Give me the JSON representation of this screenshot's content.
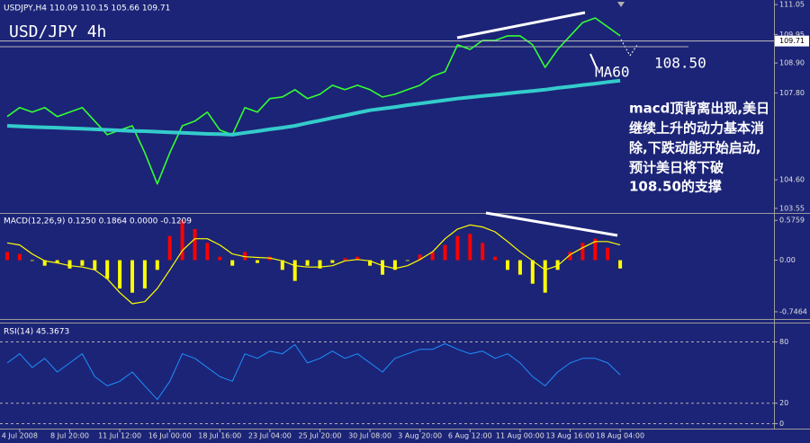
{
  "chart_data": [
    {
      "type": "line",
      "title": "USDJPY,H4 110.09 110.15 105.66 109.71",
      "subtitle": "USD/JPY 4h",
      "annotations": [
        "108.50",
        "macd顶背离出现,美日",
        "继续上升的动力基本消",
        "除,下跌动能开始启动,",
        "预计美日将下破",
        "108.50的支撑"
      ],
      "ylim": [
        103.38,
        111.22
      ],
      "yticks": [
        111.05,
        109.95,
        {
          "value": 108.9,
          "label": "108.90"
        },
        {
          "value": 107.8,
          "label": "107.80"
        },
        {
          "value": 104.6,
          "label": "104.60"
        },
        103.55
      ],
      "last_value": 109.71,
      "grid": false,
      "series": [
        {
          "color": "#33ff33",
          "values": [
            106.93,
            107.26,
            107.09,
            107.26,
            106.93,
            107.09,
            107.26,
            106.76,
            106.26,
            106.43,
            106.59,
            105.6,
            104.45,
            105.6,
            106.59,
            106.76,
            107.09,
            106.43,
            106.26,
            107.26,
            107.09,
            107.59,
            107.65,
            107.92,
            107.59,
            107.75,
            108.08,
            107.92,
            108.08,
            107.92,
            107.65,
            107.75,
            107.92,
            108.08,
            108.41,
            108.58,
            109.57,
            109.4,
            109.73,
            109.73,
            109.9,
            109.9,
            109.57,
            108.74,
            109.4,
            109.9,
            110.39,
            110.56,
            110.23,
            109.9
          ]
        },
        {
          "name": "MA60",
          "color": "#33cccc",
          "values": [
            106.59,
            106.57,
            106.55,
            106.53,
            106.52,
            106.5,
            106.48,
            106.46,
            106.44,
            106.42,
            106.4,
            106.39,
            106.37,
            106.35,
            106.33,
            106.31,
            106.29,
            106.28,
            106.26,
            106.33,
            106.39,
            106.46,
            106.52,
            106.59,
            106.69,
            106.78,
            106.88,
            106.97,
            107.07,
            107.16,
            107.22,
            107.28,
            107.35,
            107.41,
            107.47,
            107.53,
            107.59,
            107.64,
            107.69,
            107.73,
            107.78,
            107.83,
            107.87,
            107.92,
            107.98,
            108.03,
            108.09,
            108.14,
            108.2,
            108.25
          ]
        }
      ]
    },
    {
      "type": "macd",
      "title": "MACD(12,26,9) 0.1250 0.1864 0.0000 -0.1209",
      "ylim": [
        -0.825,
        0.67
      ],
      "yticks": [
        0.5759,
        {
          "value": 0,
          "label": "0.00"
        },
        -0.7464
      ],
      "grid": false,
      "histogram": {
        "up_color": "#ff0000",
        "down_color": "#ffff00",
        "values": [
          0.12,
          0.09,
          -0.01,
          -0.08,
          -0.04,
          -0.12,
          -0.08,
          -0.14,
          -0.27,
          -0.41,
          -0.47,
          -0.41,
          -0.14,
          0.35,
          0.58,
          0.45,
          0.25,
          0.05,
          -0.08,
          0.12,
          -0.04,
          0.05,
          -0.14,
          -0.3,
          -0.08,
          -0.12,
          -0.04,
          0.03,
          0.05,
          -0.08,
          -0.21,
          -0.14,
          -0.01,
          0.08,
          0.12,
          0.22,
          0.35,
          0.38,
          0.25,
          0.05,
          -0.14,
          -0.21,
          -0.34,
          -0.47,
          -0.14,
          0.12,
          0.25,
          0.31,
          0.18,
          -0.12
        ]
      },
      "series": [
        {
          "color": "#ffff00",
          "values": [
            0.25,
            0.22,
            0.09,
            -0.01,
            -0.04,
            -0.08,
            -0.1,
            -0.14,
            -0.27,
            -0.47,
            -0.63,
            -0.6,
            -0.41,
            -0.14,
            0.14,
            0.31,
            0.31,
            0.22,
            0.09,
            0.05,
            0.04,
            0.03,
            -0.01,
            -0.08,
            -0.1,
            -0.1,
            -0.08,
            -0.01,
            0.01,
            -0.01,
            -0.08,
            -0.12,
            -0.08,
            0.01,
            0.12,
            0.31,
            0.45,
            0.51,
            0.48,
            0.41,
            0.27,
            0.12,
            -0.01,
            -0.14,
            -0.08,
            0.08,
            0.18,
            0.27,
            0.27,
            0.22
          ]
        }
      ]
    },
    {
      "type": "line",
      "title": "RSI(14) 45.3673",
      "ylim": [
        -4,
        98
      ],
      "yticks": [
        80,
        20,
        0
      ],
      "grid": true,
      "categories": [
        null,
        "4 Jul 2008",
        null,
        null,
        null,
        "8 Jul 20:00",
        null,
        null,
        null,
        "11 Jul 12:00",
        null,
        null,
        null,
        "16 Jul 00:00",
        null,
        null,
        null,
        "18 Jul 16:00",
        null,
        null,
        null,
        "23 Jul 04:00",
        null,
        null,
        null,
        "25 Jul 20:00",
        null,
        null,
        null,
        "30 Jul 08:00",
        null,
        null,
        null,
        "3 Aug 20:00",
        null,
        null,
        null,
        "6 Aug 12:00",
        null,
        null,
        null,
        "11 Aug 00:00",
        null,
        null,
        null,
        "13 Aug 16:00",
        null,
        null,
        null,
        "18 Aug 04:00"
      ],
      "series": [
        {
          "color": "#1e90ff",
          "values": [
            59.4,
            68.4,
            54.9,
            63.9,
            50.5,
            59.4,
            68.4,
            46.0,
            37.0,
            41.5,
            50.5,
            37.0,
            23.6,
            41.5,
            68.4,
            63.9,
            54.9,
            46.0,
            41.5,
            68.4,
            63.9,
            71.0,
            68.4,
            77.3,
            59.4,
            63.9,
            71.0,
            63.9,
            68.4,
            59.4,
            50.5,
            63.9,
            68.4,
            72.8,
            72.8,
            78.2,
            72.8,
            68.4,
            71.0,
            63.9,
            68.4,
            59.4,
            46.0,
            37.0,
            50.5,
            59.4,
            63.9,
            63.9,
            59.4,
            47.8
          ]
        }
      ]
    }
  ]
}
